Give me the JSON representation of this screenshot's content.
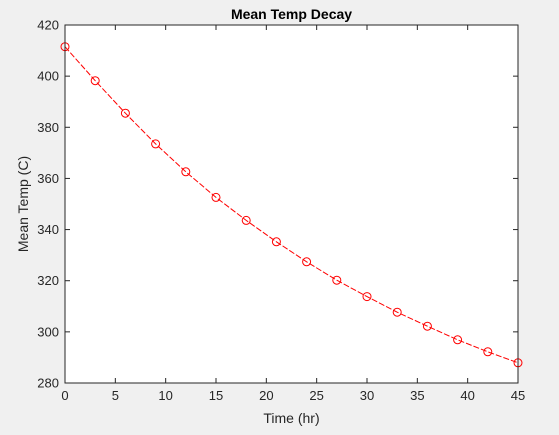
{
  "chart_data": {
    "type": "line",
    "title": "Mean Temp Decay",
    "xlabel": "Time (hr)",
    "ylabel": "Mean Temp (C)",
    "xlim": [
      0,
      45
    ],
    "ylim": [
      280,
      420
    ],
    "xticks": [
      0,
      5,
      10,
      15,
      20,
      25,
      30,
      35,
      40,
      45
    ],
    "yticks": [
      280,
      300,
      320,
      340,
      360,
      380,
      400,
      420
    ],
    "grid": false,
    "legend": "none",
    "series": [
      {
        "color": "#ff0000",
        "marker": "circle-open",
        "line_style": "dashed",
        "x": [
          0,
          3,
          6,
          9,
          12,
          15,
          18,
          21,
          24,
          27,
          30,
          33,
          36,
          39,
          42,
          45
        ],
        "y": [
          411.5,
          398.2,
          385.5,
          373.5,
          362.6,
          352.6,
          343.6,
          335.2,
          327.4,
          320.2,
          313.8,
          307.7,
          302.2,
          296.9,
          292.2,
          287.9
        ]
      }
    ]
  },
  "colors": {
    "figure_background": "#f0f0f0",
    "axes_background": "#ffffff",
    "axis_color": "#262626",
    "series": "#ff0000"
  }
}
